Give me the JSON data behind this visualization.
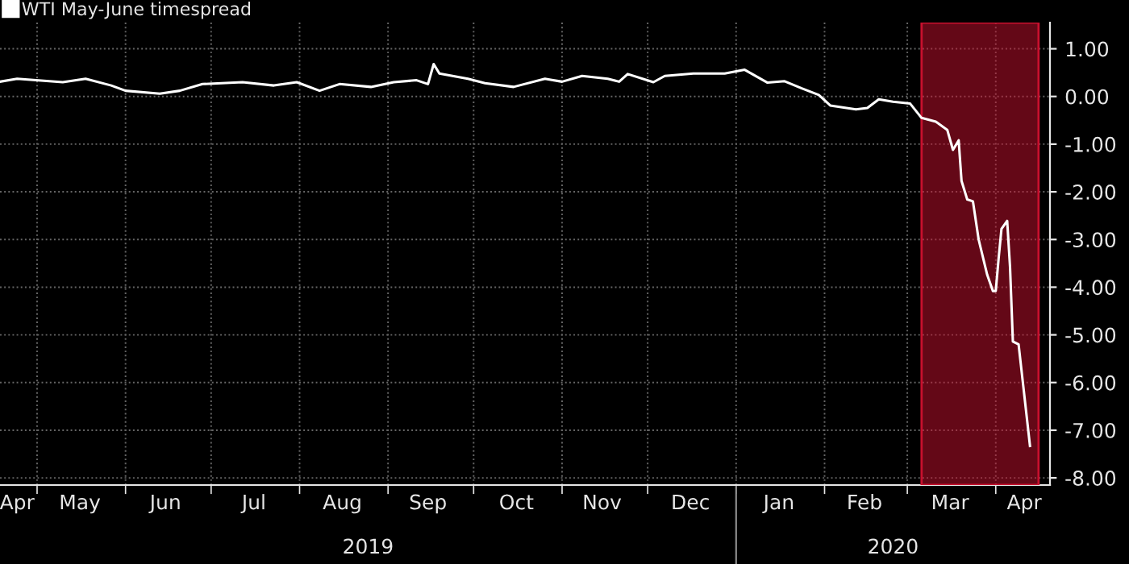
{
  "chart_data": {
    "type": "line",
    "x": [
      "2019-04-18",
      "2019-04-24",
      "2019-05-10",
      "2019-05-18",
      "2019-05-27",
      "2019-06-01",
      "2019-06-13",
      "2019-06-20",
      "2019-06-28",
      "2019-07-12",
      "2019-07-23",
      "2019-07-31",
      "2019-08-08",
      "2019-08-15",
      "2019-08-26",
      "2019-09-03",
      "2019-09-11",
      "2019-09-15",
      "2019-09-17",
      "2019-09-19",
      "2019-09-29",
      "2019-10-05",
      "2019-10-15",
      "2019-10-26",
      "2019-10-28",
      "2019-11-01",
      "2019-11-08",
      "2019-11-17",
      "2019-11-21",
      "2019-11-24",
      "2019-12-03",
      "2019-12-07",
      "2019-12-17",
      "2019-12-28",
      "2020-01-04",
      "2020-01-12",
      "2020-01-18",
      "2020-01-24",
      "2020-01-30",
      "2020-02-03",
      "2020-02-12",
      "2020-02-16",
      "2020-02-20",
      "2020-02-25",
      "2020-03-02",
      "2020-03-06",
      "2020-03-11",
      "2020-03-15",
      "2020-03-17",
      "2020-03-19",
      "2020-03-20",
      "2020-03-22",
      "2020-03-24",
      "2020-03-26",
      "2020-03-29",
      "2020-03-31",
      "2020-04-01",
      "2020-04-02",
      "2020-04-03",
      "2020-04-05",
      "2020-04-06",
      "2020-04-07",
      "2020-04-09",
      "2020-04-13"
    ],
    "series": [
      {
        "name": "WTI May-June timespread",
        "color": "#ffffff",
        "values": [
          0.31,
          0.37,
          0.3,
          0.37,
          0.23,
          0.12,
          0.06,
          0.12,
          0.26,
          0.3,
          0.23,
          0.3,
          0.12,
          0.26,
          0.2,
          0.3,
          0.34,
          0.26,
          0.68,
          0.48,
          0.37,
          0.28,
          0.2,
          0.37,
          0.35,
          0.31,
          0.43,
          0.37,
          0.31,
          0.47,
          0.3,
          0.43,
          0.48,
          0.48,
          0.56,
          0.29,
          0.32,
          0.17,
          0.03,
          -0.19,
          -0.27,
          -0.24,
          -0.06,
          -0.11,
          -0.15,
          -0.45,
          -0.53,
          -0.7,
          -1.12,
          -0.92,
          -1.77,
          -2.16,
          -2.2,
          -3.0,
          -3.74,
          -4.08,
          -4.08,
          -3.4,
          -2.78,
          -2.61,
          -3.57,
          -5.14,
          -5.2,
          -7.33
        ]
      }
    ],
    "xlim": [
      "2019-04-18",
      "2020-04-20"
    ],
    "xticks": [
      {
        "value": "2019-04-24",
        "label": "Apr"
      },
      {
        "value": "2019-05-16",
        "label": "May"
      },
      {
        "value": "2019-06-15",
        "label": "Jun"
      },
      {
        "value": "2019-07-16",
        "label": "Jul"
      },
      {
        "value": "2019-08-16",
        "label": "Aug"
      },
      {
        "value": "2019-09-15",
        "label": "Sep"
      },
      {
        "value": "2019-10-16",
        "label": "Oct"
      },
      {
        "value": "2019-11-15",
        "label": "Nov"
      },
      {
        "value": "2019-12-16",
        "label": "Dec"
      },
      {
        "value": "2020-01-16",
        "label": "Jan"
      },
      {
        "value": "2020-02-15",
        "label": "Feb"
      },
      {
        "value": "2020-03-16",
        "label": "Mar"
      },
      {
        "value": "2020-04-11",
        "label": "Apr"
      },
      {
        "value": "2019-05-01",
        "label": null
      },
      {
        "value": "2019-06-01",
        "label": null
      },
      {
        "value": "2019-07-01",
        "label": null
      },
      {
        "value": "2019-08-01",
        "label": null
      },
      {
        "value": "2019-09-01",
        "label": null
      },
      {
        "value": "2019-10-01",
        "label": null
      },
      {
        "value": "2019-11-01",
        "label": null
      },
      {
        "value": "2019-12-01",
        "label": null
      },
      {
        "value": "2020-01-01",
        "label": null
      },
      {
        "value": "2020-02-01",
        "label": null
      },
      {
        "value": "2020-03-01",
        "label": null
      },
      {
        "value": "2020-04-01",
        "label": null
      }
    ],
    "ylim": [
      -8.15,
      1.55
    ],
    "yticks": [
      {
        "value": 1,
        "label": "1.00"
      },
      {
        "value": 0,
        "label": "0.00"
      },
      {
        "value": -1,
        "label": "-1.00"
      },
      {
        "value": -2,
        "label": "-2.00"
      },
      {
        "value": -3,
        "label": "-3.00"
      },
      {
        "value": -4,
        "label": "-4.00"
      },
      {
        "value": -5,
        "label": "-5.00"
      },
      {
        "value": -6,
        "label": "-6.00"
      },
      {
        "value": -7,
        "label": "-7.00"
      },
      {
        "value": -8,
        "label": "-8.00"
      }
    ],
    "bands": [
      {
        "axis": "x",
        "from": "2020-03-06",
        "to": "2020-04-16",
        "color": "#c8102e"
      }
    ],
    "annotations": [
      "2019",
      "2020"
    ],
    "grid": true,
    "legend": "top left",
    "marker": "none",
    "line_style": "solid"
  }
}
